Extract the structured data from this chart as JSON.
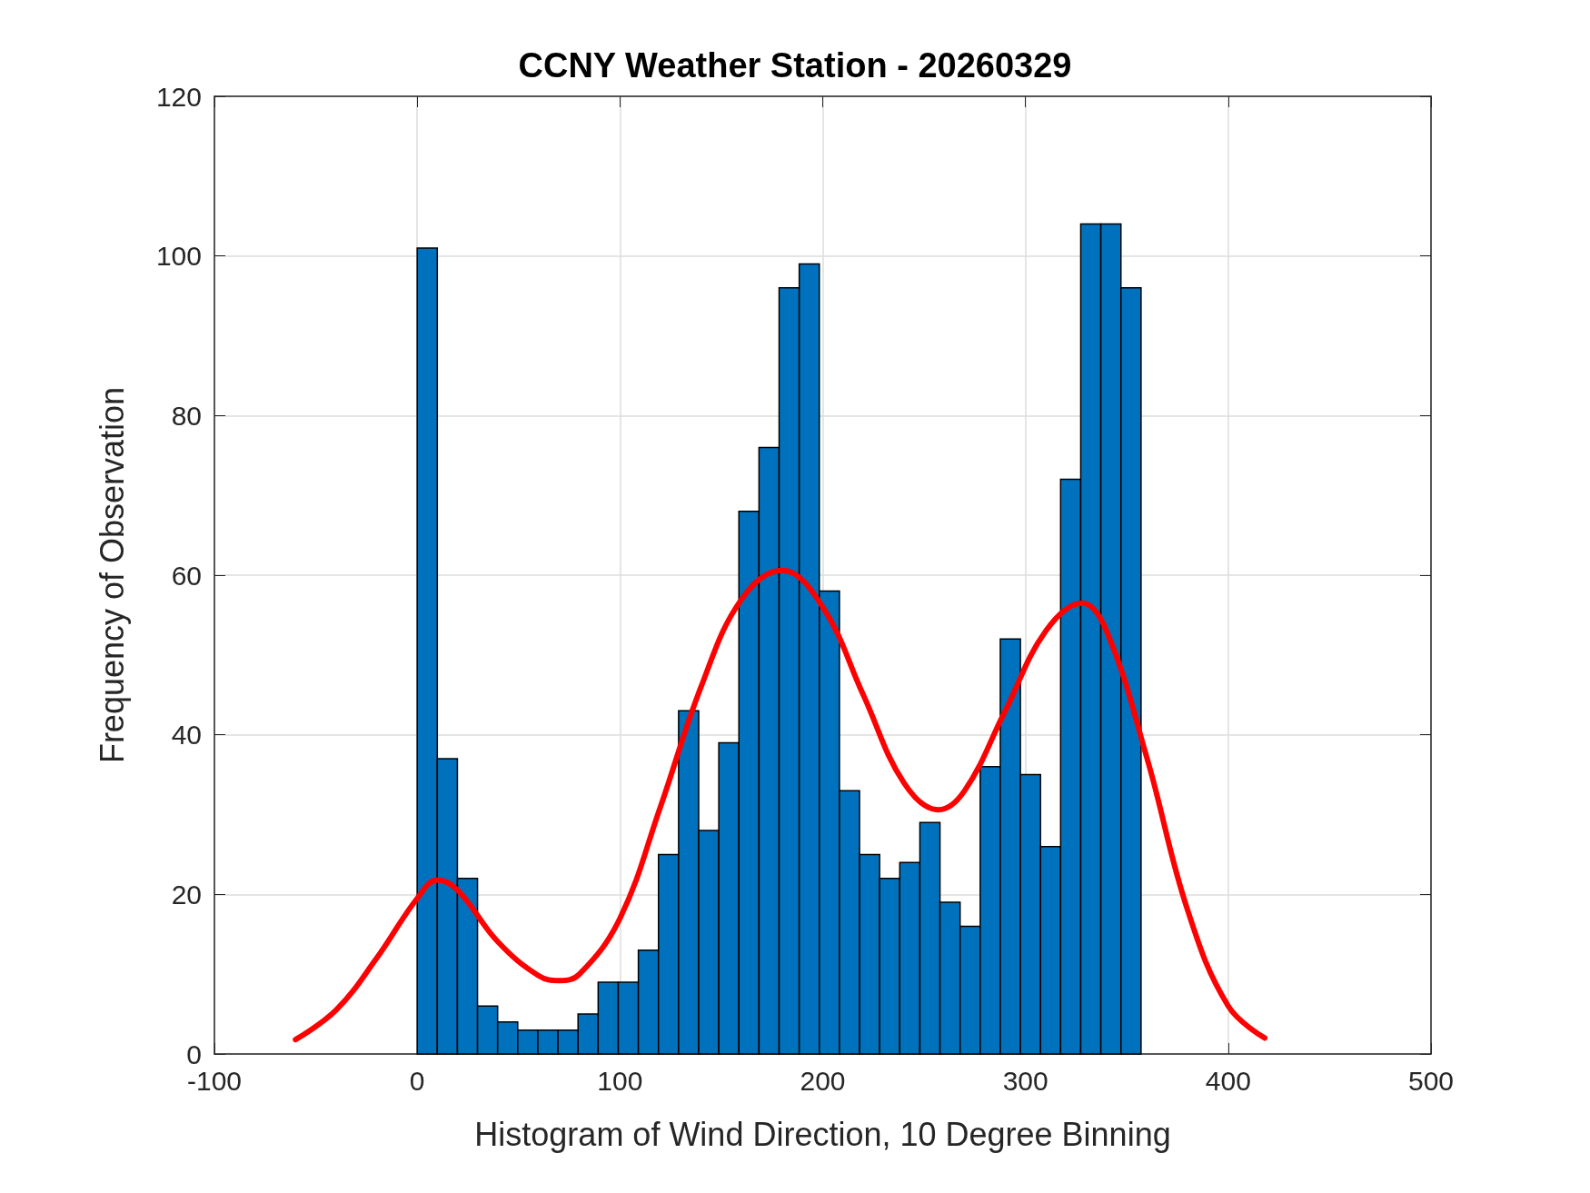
{
  "chart_data": {
    "type": "histogram",
    "title": "CCNY Weather Station - 20260329",
    "xlabel": "Histogram of Wind Direction, 10 Degree Binning",
    "ylabel": "Frequency of Observation",
    "bins": [
      0,
      9.92,
      19.83,
      29.75,
      39.67,
      49.58,
      59.5,
      69.42,
      79.33,
      89.25,
      99.17,
      109.08,
      119,
      128.92,
      138.83,
      148.75,
      158.67,
      168.58,
      178.5,
      188.42,
      198.33,
      208.25,
      218.17,
      228.08,
      238,
      247.92,
      257.83,
      267.75,
      277.67,
      287.58,
      297.5,
      307.42,
      317.33,
      327.25,
      337.17,
      347.08,
      357
    ],
    "values": [
      101,
      37,
      22,
      6,
      4,
      3,
      3,
      3,
      5,
      9,
      9,
      13,
      25,
      43,
      28,
      39,
      68,
      76,
      96,
      99,
      58,
      33,
      25,
      22,
      24,
      29,
      19,
      16,
      36,
      52,
      35,
      26,
      72,
      104,
      104,
      96
    ],
    "color": "#0072bd",
    "series": [
      {
        "type": "line",
        "color": "#ff0000",
        "x": [
          -60,
          -40,
          -20,
          0,
          10,
          20,
          40,
          60,
          70,
          80,
          100,
          120,
          140,
          160,
          180,
          200,
          220,
          240,
          257,
          270,
          290,
          310,
          328,
          340,
          360,
          380,
          400,
          418
        ],
        "values": [
          1.8,
          5.5,
          12,
          19.5,
          21.8,
          20.5,
          14,
          9.8,
          9.2,
          10,
          17,
          31,
          46,
          57,
          60.6,
          56,
          45,
          34,
          30.6,
          33,
          43,
          53,
          56.5,
          53,
          37,
          18,
          6,
          2
        ]
      }
    ],
    "xlim": [
      -100,
      500
    ],
    "xticks": [
      -100,
      0,
      100,
      200,
      300,
      400,
      500
    ],
    "ylim": [
      0,
      120
    ],
    "yticks": [
      0,
      20,
      40,
      60,
      80,
      100,
      120
    ],
    "grid": true,
    "marker": "none",
    "line_style": "solid"
  }
}
